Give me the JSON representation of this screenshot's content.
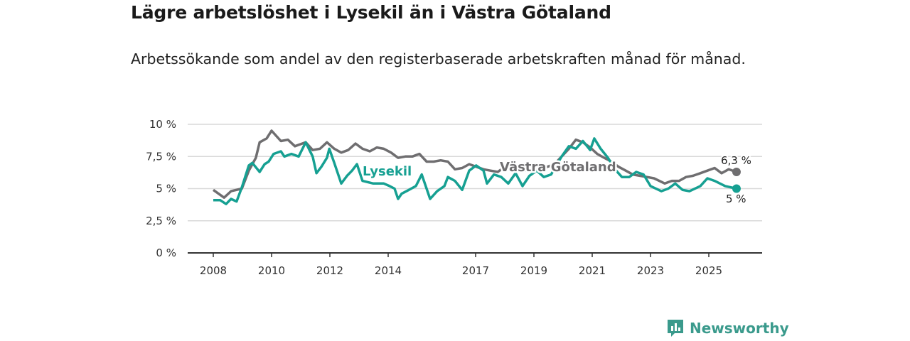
{
  "header": {
    "title": "Lägre arbetslöshet i Lysekil än i Västra Götaland",
    "subtitle": "Arbetssökande som andel av den registerbaserade arbetskraften månad för månad."
  },
  "branding": {
    "name": "Newsworthy",
    "color": "#3a9a8c"
  },
  "chart_data": {
    "type": "line",
    "title": "Lägre arbetslöshet i Lysekil än i Västra Götaland",
    "xlabel": "",
    "ylabel": "",
    "xlim": [
      2008,
      2026.2
    ],
    "ylim": [
      0,
      10
    ],
    "yticks": [
      {
        "v": 0,
        "label": "0 %"
      },
      {
        "v": 2.5,
        "label": "2,5 %"
      },
      {
        "v": 5,
        "label": "5 %"
      },
      {
        "v": 7.5,
        "label": "7,5 %"
      },
      {
        "v": 10,
        "label": "10 %"
      }
    ],
    "xticks": [
      {
        "v": 2008,
        "label": "2008"
      },
      {
        "v": 2010,
        "label": "2010"
      },
      {
        "v": 2012,
        "label": "2012"
      },
      {
        "v": 2014,
        "label": "2014"
      },
      {
        "v": 2017,
        "label": "2017"
      },
      {
        "v": 2019,
        "label": "2019"
      },
      {
        "v": 2021,
        "label": "2021"
      },
      {
        "v": 2023,
        "label": "2023"
      },
      {
        "v": 2025,
        "label": "2025"
      }
    ],
    "grid": true,
    "series": [
      {
        "name": "Västra Götaland",
        "color": "#6f6e70",
        "end_label": "6,3 %",
        "points": [
          [
            2008.0,
            4.9
          ],
          [
            2008.37,
            4.3
          ],
          [
            2008.61,
            4.8
          ],
          [
            2008.98,
            5.0
          ],
          [
            2009.22,
            6.4
          ],
          [
            2009.46,
            7.4
          ],
          [
            2009.59,
            8.6
          ],
          [
            2009.83,
            8.9
          ],
          [
            2010.0,
            9.5
          ],
          [
            2010.32,
            8.7
          ],
          [
            2010.56,
            8.8
          ],
          [
            2010.8,
            8.3
          ],
          [
            2011.05,
            8.5
          ],
          [
            2011.17,
            8.6
          ],
          [
            2011.41,
            8.0
          ],
          [
            2011.66,
            8.1
          ],
          [
            2011.9,
            8.6
          ],
          [
            2012.15,
            8.1
          ],
          [
            2012.39,
            7.8
          ],
          [
            2012.63,
            8.0
          ],
          [
            2012.88,
            8.5
          ],
          [
            2013.12,
            8.1
          ],
          [
            2013.37,
            7.9
          ],
          [
            2013.61,
            8.2
          ],
          [
            2013.85,
            8.1
          ],
          [
            2014.1,
            7.8
          ],
          [
            2014.34,
            7.4
          ],
          [
            2014.59,
            7.5
          ],
          [
            2014.83,
            7.5
          ],
          [
            2015.07,
            7.7
          ],
          [
            2015.32,
            7.1
          ],
          [
            2015.56,
            7.1
          ],
          [
            2015.8,
            7.2
          ],
          [
            2016.05,
            7.1
          ],
          [
            2016.29,
            6.5
          ],
          [
            2016.54,
            6.6
          ],
          [
            2016.78,
            6.9
          ],
          [
            2017.02,
            6.7
          ],
          [
            2017.27,
            6.5
          ],
          [
            2017.51,
            6.4
          ],
          [
            2017.76,
            6.3
          ],
          [
            2018.0,
            6.7
          ],
          [
            2018.24,
            6.5
          ],
          [
            2018.73,
            6.4
          ],
          [
            2019.22,
            6.5
          ],
          [
            2019.71,
            6.9
          ],
          [
            2019.95,
            7.5
          ],
          [
            2020.2,
            8.1
          ],
          [
            2020.44,
            8.8
          ],
          [
            2020.68,
            8.6
          ],
          [
            2020.93,
            8.2
          ],
          [
            2021.17,
            7.7
          ],
          [
            2021.41,
            7.4
          ],
          [
            2021.66,
            7.1
          ],
          [
            2021.9,
            6.7
          ],
          [
            2022.15,
            6.4
          ],
          [
            2022.39,
            6.1
          ],
          [
            2022.63,
            6.0
          ],
          [
            2022.88,
            5.9
          ],
          [
            2023.12,
            5.8
          ],
          [
            2023.49,
            5.4
          ],
          [
            2023.73,
            5.6
          ],
          [
            2023.98,
            5.6
          ],
          [
            2024.22,
            5.9
          ],
          [
            2024.46,
            6.0
          ],
          [
            2024.71,
            6.2
          ],
          [
            2024.95,
            6.4
          ],
          [
            2025.2,
            6.6
          ],
          [
            2025.44,
            6.2
          ],
          [
            2025.68,
            6.5
          ],
          [
            2025.95,
            6.3
          ]
        ]
      },
      {
        "name": "Lysekil",
        "color": "#16a092",
        "end_label": "5 %",
        "points": [
          [
            2008.0,
            4.1
          ],
          [
            2008.24,
            4.1
          ],
          [
            2008.44,
            3.8
          ],
          [
            2008.61,
            4.2
          ],
          [
            2008.8,
            4.0
          ],
          [
            2008.98,
            5.1
          ],
          [
            2009.22,
            6.8
          ],
          [
            2009.34,
            7.0
          ],
          [
            2009.59,
            6.3
          ],
          [
            2009.76,
            6.9
          ],
          [
            2009.9,
            7.1
          ],
          [
            2010.07,
            7.7
          ],
          [
            2010.32,
            7.9
          ],
          [
            2010.44,
            7.5
          ],
          [
            2010.68,
            7.7
          ],
          [
            2010.93,
            7.5
          ],
          [
            2011.17,
            8.6
          ],
          [
            2011.41,
            7.5
          ],
          [
            2011.54,
            6.2
          ],
          [
            2011.71,
            6.7
          ],
          [
            2011.9,
            7.4
          ],
          [
            2011.98,
            8.1
          ],
          [
            2012.15,
            7.0
          ],
          [
            2012.39,
            5.4
          ],
          [
            2012.59,
            6.0
          ],
          [
            2012.76,
            6.4
          ],
          [
            2012.93,
            6.9
          ],
          [
            2013.12,
            5.6
          ],
          [
            2013.49,
            5.4
          ],
          [
            2013.85,
            5.4
          ],
          [
            2014.05,
            5.2
          ],
          [
            2014.22,
            5.0
          ],
          [
            2014.34,
            4.2
          ],
          [
            2014.46,
            4.6
          ],
          [
            2014.71,
            4.9
          ],
          [
            2014.95,
            5.2
          ],
          [
            2015.15,
            6.1
          ],
          [
            2015.44,
            4.2
          ],
          [
            2015.68,
            4.8
          ],
          [
            2015.93,
            5.2
          ],
          [
            2016.05,
            5.9
          ],
          [
            2016.29,
            5.6
          ],
          [
            2016.54,
            4.9
          ],
          [
            2016.78,
            6.4
          ],
          [
            2017.02,
            6.8
          ],
          [
            2017.27,
            6.4
          ],
          [
            2017.39,
            5.4
          ],
          [
            2017.63,
            6.1
          ],
          [
            2017.88,
            5.9
          ],
          [
            2018.12,
            5.4
          ],
          [
            2018.37,
            6.2
          ],
          [
            2018.61,
            5.2
          ],
          [
            2018.85,
            6.0
          ],
          [
            2019.1,
            6.4
          ],
          [
            2019.34,
            5.9
          ],
          [
            2019.59,
            6.1
          ],
          [
            2019.95,
            7.5
          ],
          [
            2020.2,
            8.3
          ],
          [
            2020.44,
            8.1
          ],
          [
            2020.68,
            8.7
          ],
          [
            2020.93,
            8.0
          ],
          [
            2021.07,
            8.9
          ],
          [
            2021.29,
            8.1
          ],
          [
            2021.54,
            7.4
          ],
          [
            2021.78,
            6.5
          ],
          [
            2022.02,
            5.9
          ],
          [
            2022.27,
            5.9
          ],
          [
            2022.51,
            6.3
          ],
          [
            2022.76,
            6.1
          ],
          [
            2023.0,
            5.2
          ],
          [
            2023.37,
            4.8
          ],
          [
            2023.61,
            5.0
          ],
          [
            2023.85,
            5.4
          ],
          [
            2024.1,
            4.9
          ],
          [
            2024.34,
            4.8
          ],
          [
            2024.71,
            5.2
          ],
          [
            2024.95,
            5.8
          ],
          [
            2025.2,
            5.6
          ],
          [
            2025.56,
            5.2
          ],
          [
            2025.95,
            5.0
          ]
        ]
      }
    ]
  }
}
